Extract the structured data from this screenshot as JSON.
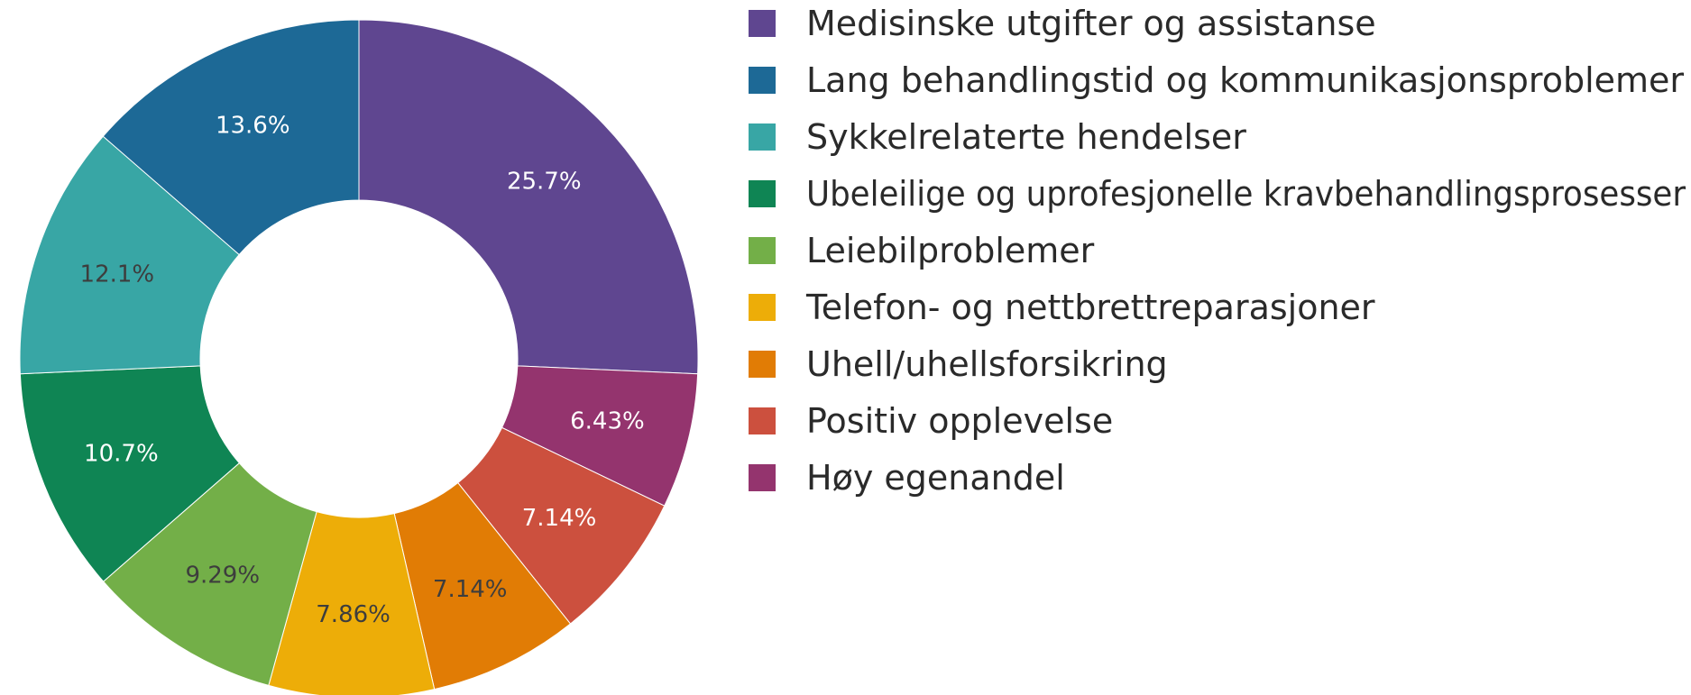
{
  "chart_data": {
    "type": "pie",
    "hole": true,
    "legend_position": "right",
    "slices": [
      {
        "label": "Medisinske utgifter og assistanse",
        "value": 25.7,
        "value_label": "25.7%",
        "color": "#5f4690",
        "label_color": "#ffffff"
      },
      {
        "label": "Høy egenandel",
        "value": 6.43,
        "value_label": "6.43%",
        "color": "#94346e",
        "label_color": "#ffffff"
      },
      {
        "label": "Positiv opplevelse",
        "value": 7.14,
        "value_label": "7.14%",
        "color": "#cc503e",
        "label_color": "#ffffff"
      },
      {
        "label": "Uhell/uhellsforsikring",
        "value": 7.14,
        "value_label": "7.14%",
        "color": "#e17c05",
        "label_color": "#3d3d3d"
      },
      {
        "label": "Telefon- og nettbrettreparasjoner",
        "value": 7.86,
        "value_label": "7.86%",
        "color": "#edad08",
        "label_color": "#3d3d3d"
      },
      {
        "label": "Leiebilproblemer",
        "value": 9.29,
        "value_label": "9.29%",
        "color": "#73af48",
        "label_color": "#3d3d3d"
      },
      {
        "label": "Ubeleilige og uprofesjonelle kravbehandlingsprosesser",
        "value": 10.7,
        "value_label": "10.7%",
        "color": "#0f8554",
        "label_color": "#ffffff"
      },
      {
        "label": "Sykkelrelaterte hendelser",
        "value": 12.1,
        "value_label": "12.1%",
        "color": "#38a6a5",
        "label_color": "#3d3d3d"
      },
      {
        "label": "Lang behandlingstid og kommunikasjonsproblemer",
        "value": 13.6,
        "value_label": "13.6%",
        "color": "#1d6996",
        "label_color": "#ffffff"
      }
    ],
    "legend": [
      {
        "label": "Medisinske utgifter og assistanse",
        "color": "#5f4690"
      },
      {
        "label": "Lang behandlingstid og kommunikasjonsproblemer",
        "color": "#1d6996"
      },
      {
        "label": "Sykkelrelaterte hendelser",
        "color": "#38a6a5"
      },
      {
        "label": "Ubeleilige og uprofesjonelle kravbehandlingsprosesser",
        "color": "#0f8554"
      },
      {
        "label": "Leiebilproblemer",
        "color": "#73af48"
      },
      {
        "label": "Telefon- og nettbrettreparasjoner",
        "color": "#edad08"
      },
      {
        "label": "Uhell/uhellsforsikring",
        "color": "#e17c05"
      },
      {
        "label": "Positiv opplevelse",
        "color": "#cc503e"
      },
      {
        "label": "Høy egenandel",
        "color": "#94346e"
      }
    ]
  }
}
